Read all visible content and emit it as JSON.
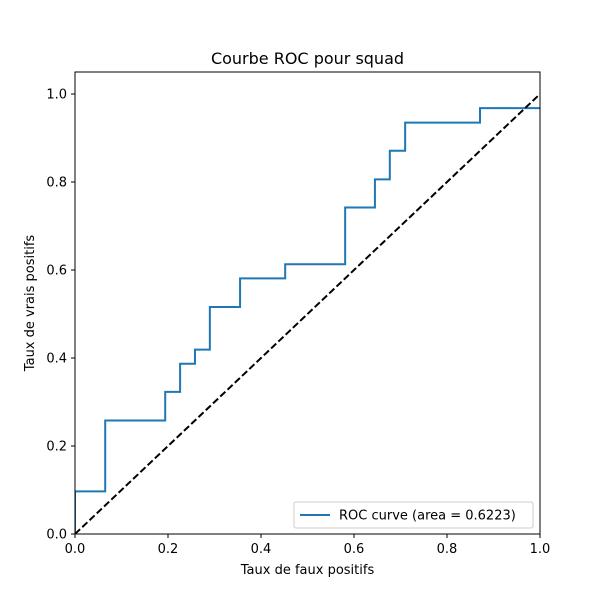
{
  "chart_data": {
    "type": "line",
    "title": "Courbe ROC pour squad",
    "xlabel": "Taux de faux positifs",
    "ylabel": "Taux de vrais positifs",
    "xlim": [
      0.0,
      1.0
    ],
    "ylim": [
      0.0,
      1.05
    ],
    "grid": false,
    "legend_position": "lower-right",
    "x_ticks": [
      0.0,
      0.2,
      0.4,
      0.6,
      0.8,
      1.0
    ],
    "x_tick_labels": [
      "0.0",
      "0.2",
      "0.4",
      "0.6",
      "0.8",
      "1.0"
    ],
    "y_ticks": [
      0.0,
      0.2,
      0.4,
      0.6,
      0.8,
      1.0
    ],
    "y_tick_labels": [
      "0.0",
      "0.2",
      "0.4",
      "0.6",
      "0.8",
      "1.0"
    ],
    "series": [
      {
        "name": "ROC curve (area = 0.6223)",
        "color": "#1f77b4",
        "style": "solid",
        "x": [
          0.0,
          0.0,
          0.065,
          0.065,
          0.194,
          0.194,
          0.226,
          0.226,
          0.258,
          0.258,
          0.29,
          0.29,
          0.355,
          0.355,
          0.452,
          0.452,
          0.581,
          0.581,
          0.645,
          0.645,
          0.677,
          0.677,
          0.71,
          0.71,
          0.871,
          0.871,
          1.0
        ],
        "y": [
          0.0,
          0.097,
          0.097,
          0.258,
          0.258,
          0.323,
          0.323,
          0.387,
          0.387,
          0.419,
          0.419,
          0.516,
          0.516,
          0.581,
          0.581,
          0.613,
          0.613,
          0.742,
          0.742,
          0.806,
          0.806,
          0.871,
          0.871,
          0.935,
          0.935,
          0.968,
          0.968
        ]
      },
      {
        "color": "#000000",
        "style": "dashed",
        "x": [
          0.0,
          1.0
        ],
        "y": [
          0.0,
          1.0
        ]
      }
    ]
  }
}
